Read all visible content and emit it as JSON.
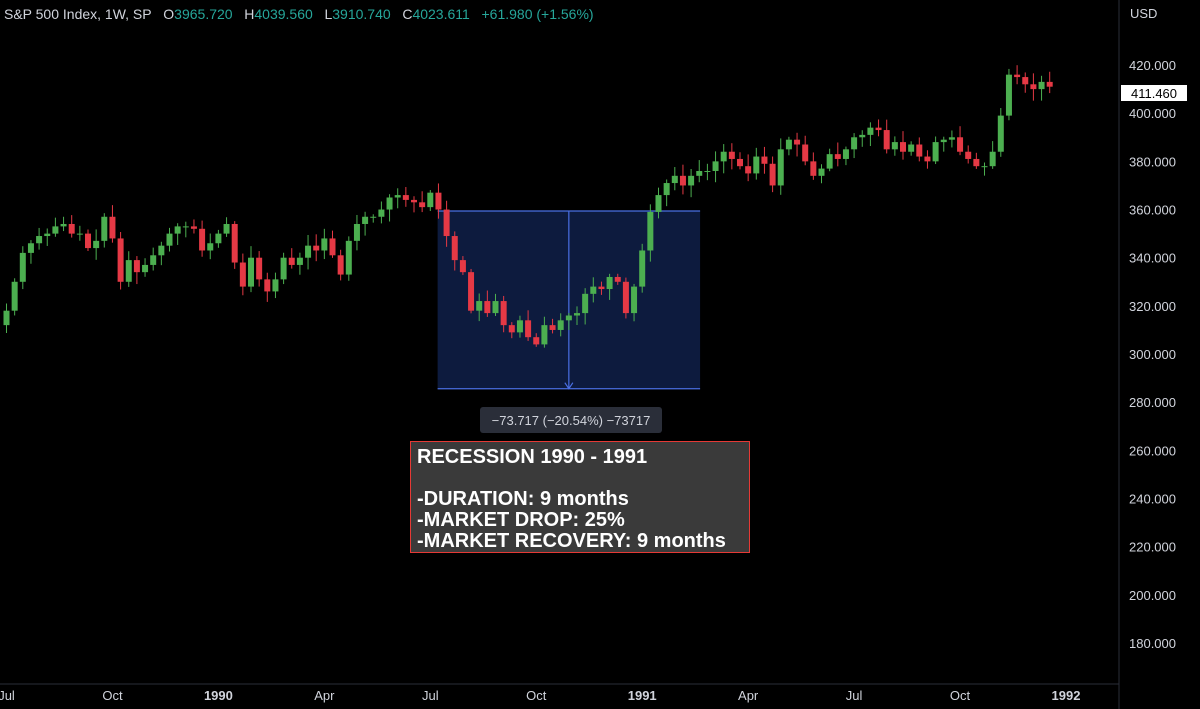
{
  "legend": {
    "symbol": "S&P 500 Index, 1W, SP",
    "o_label": "O",
    "o": "3965.720",
    "h_label": "H",
    "h": "4039.560",
    "l_label": "L",
    "l": "3910.740",
    "c_label": "C",
    "c": "4023.611",
    "change": "+61.980 (+1.56%)"
  },
  "currency": "USD",
  "last_price": "411.460",
  "measure": {
    "label": "−73.717 (−20.54%) −73717",
    "top": 359.4,
    "bottom": 285.6
  },
  "note": {
    "title": "RECESSION 1990 - 1991",
    "line1": "-DURATION: 9 months",
    "line2": "-MARKET DROP: 25%",
    "line3": "-MARKET RECOVERY: 9 months"
  },
  "colors": {
    "up": "#26a69a",
    "down": "#ef5350",
    "up_candle": "#4caf50",
    "down_candle": "#e53945",
    "measure_fill": "#0d1b3e",
    "measure_line": "#4a6fe3"
  },
  "chart_data": {
    "type": "candlestick",
    "title": "S&P 500 Index, 1W, SP",
    "ylabel": "USD",
    "ylim": [
      163,
      447
    ],
    "y_ticks": [
      180,
      200,
      220,
      240,
      260,
      280,
      300,
      320,
      340,
      360,
      380,
      400,
      420
    ],
    "x_ticks": [
      "Jul",
      "Oct",
      "1990",
      "Apr",
      "Jul",
      "Oct",
      "1991",
      "Apr",
      "Jul",
      "Oct",
      "1992"
    ],
    "x_tick_weeks": [
      0,
      13,
      26,
      39,
      52,
      65,
      78,
      91,
      104,
      117,
      130
    ],
    "close": [
      318,
      330,
      342,
      346,
      349,
      350,
      353,
      354,
      350,
      350,
      344,
      347,
      357,
      348,
      330,
      339,
      334,
      337,
      341,
      345,
      350,
      353,
      353,
      352,
      343,
      346,
      350,
      354,
      338,
      328,
      340,
      331,
      326,
      331,
      340,
      337,
      340,
      345,
      343,
      348,
      341,
      333,
      347,
      354,
      357,
      357,
      360,
      365,
      366,
      364,
      363,
      361,
      367,
      360,
      349,
      339,
      334,
      318,
      322,
      317,
      322,
      312,
      309,
      314,
      307,
      304,
      312,
      310,
      314,
      316,
      317,
      325,
      328,
      327,
      332,
      330,
      317,
      328,
      343,
      359,
      366,
      371,
      374,
      370,
      374,
      376,
      376,
      380,
      384,
      381,
      378,
      375,
      382,
      379,
      370,
      385,
      389,
      387,
      380,
      374,
      377,
      383,
      381,
      385,
      390,
      391,
      394,
      393,
      385,
      388,
      384,
      387,
      382,
      380,
      388,
      389,
      390,
      384,
      381,
      378,
      378,
      384,
      399,
      416,
      415,
      412,
      410,
      413,
      411
    ]
  }
}
